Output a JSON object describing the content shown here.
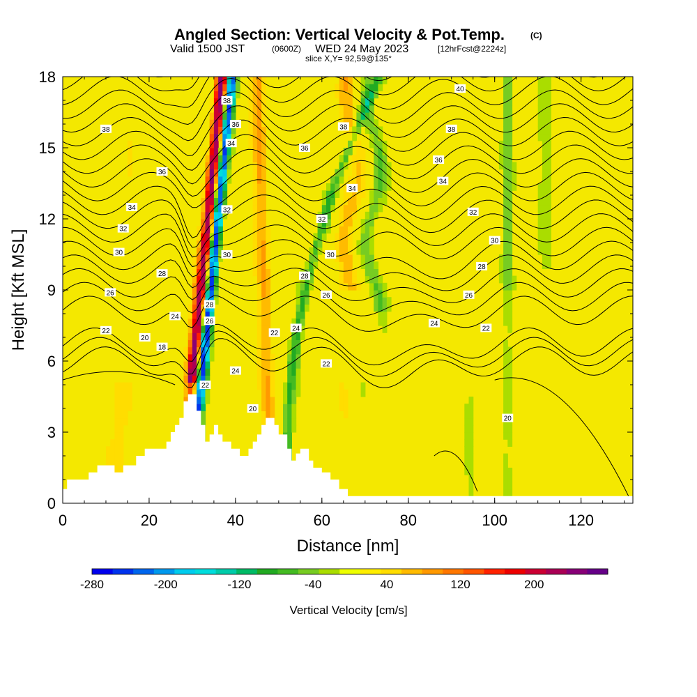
{
  "header": {
    "title_main": "Angled Section: Vertical Velocity & Pot.Temp.",
    "title_unit": "(C)",
    "line2_a": "Valid 1500 JST",
    "line2_b": "(0600Z)",
    "line2_c": "WED 24 May 2023",
    "line2_d": "[12hrFcst@2224z]",
    "line3": "slice X,Y= 92,59@135°"
  },
  "chart_data": {
    "type": "heatmap",
    "title": "Angled Section: Vertical Velocity & Pot.Temp. (C)",
    "xlabel": "Distance [nm]",
    "ylabel": "Height [Kft MSL]",
    "xlim": [
      0,
      132
    ],
    "ylim": [
      0,
      18
    ],
    "x_ticks": [
      "0",
      "20",
      "40",
      "60",
      "80",
      "100",
      "120"
    ],
    "x_tick_values": [
      0,
      20,
      40,
      60,
      80,
      100,
      120
    ],
    "y_ticks": [
      "0",
      "3",
      "6",
      "9",
      "12",
      "15",
      "18"
    ],
    "y_tick_values": [
      0,
      3,
      6,
      9,
      12,
      15,
      18
    ],
    "colorbar": {
      "label": "Vertical Velocity [cm/s]",
      "range": [
        -280,
        280
      ],
      "tick_labels": [
        "-280",
        "-200",
        "-120",
        "-40",
        "40",
        "120",
        "200"
      ],
      "tick_values": [
        -280,
        -200,
        -120,
        -40,
        40,
        120,
        200
      ],
      "colors": [
        "#0000ee",
        "#0033ee",
        "#0066ee",
        "#0099ee",
        "#00ccee",
        "#00dddd",
        "#00ccaa",
        "#00bb66",
        "#22aa22",
        "#44bb22",
        "#77cc22",
        "#aadd00",
        "#eeff00",
        "#ffee00",
        "#ffdd00",
        "#ffbb00",
        "#ff9900",
        "#ff7700",
        "#ff5500",
        "#ff2200",
        "#ee0000",
        "#cc0033",
        "#aa0055",
        "#880077",
        "#660088"
      ]
    },
    "terrain": [
      [
        0,
        0.6
      ],
      [
        1,
        0.6
      ],
      [
        1,
        1
      ],
      [
        6,
        1
      ],
      [
        6,
        1.3
      ],
      [
        8,
        1.3
      ],
      [
        8,
        1.6
      ],
      [
        12,
        1.6
      ],
      [
        12,
        1.3
      ],
      [
        14,
        1.3
      ],
      [
        14,
        1.6
      ],
      [
        17,
        1.6
      ],
      [
        17,
        2
      ],
      [
        19,
        2
      ],
      [
        19,
        2.3
      ],
      [
        24,
        2.3
      ],
      [
        24,
        2.6
      ],
      [
        25,
        2.6
      ],
      [
        25,
        3
      ],
      [
        26,
        3
      ],
      [
        26,
        3.3
      ],
      [
        27,
        3.3
      ],
      [
        27,
        3.6
      ],
      [
        28,
        3.6
      ],
      [
        28,
        4.3
      ],
      [
        29,
        4.3
      ],
      [
        29,
        4.6
      ],
      [
        31,
        4.6
      ],
      [
        31,
        3.9
      ],
      [
        32,
        3.9
      ],
      [
        32,
        3.3
      ],
      [
        33,
        3.3
      ],
      [
        33,
        2.6
      ],
      [
        34,
        2.6
      ],
      [
        34,
        2.9
      ],
      [
        35,
        2.9
      ],
      [
        35,
        3.3
      ],
      [
        36,
        3.3
      ],
      [
        36,
        2.9
      ],
      [
        37,
        2.9
      ],
      [
        37,
        2.6
      ],
      [
        39,
        2.6
      ],
      [
        39,
        2.3
      ],
      [
        41,
        2.3
      ],
      [
        41,
        2
      ],
      [
        43,
        2
      ],
      [
        43,
        2.3
      ],
      [
        44,
        2.3
      ],
      [
        44,
        2.6
      ],
      [
        45,
        2.6
      ],
      [
        45,
        2.9
      ],
      [
        46,
        2.9
      ],
      [
        46,
        3.3
      ],
      [
        47,
        3.3
      ],
      [
        47,
        3.6
      ],
      [
        49,
        3.6
      ],
      [
        49,
        3.3
      ],
      [
        50,
        3.3
      ],
      [
        50,
        2.9
      ],
      [
        52,
        2.9
      ],
      [
        52,
        2.3
      ],
      [
        53,
        2.3
      ],
      [
        53,
        1.8
      ],
      [
        54,
        1.8
      ],
      [
        54,
        2.1
      ],
      [
        55,
        2.1
      ],
      [
        55,
        2.3
      ],
      [
        57,
        2.3
      ],
      [
        57,
        1.8
      ],
      [
        58,
        1.8
      ],
      [
        58,
        1.5
      ],
      [
        60,
        1.5
      ],
      [
        60,
        1.3
      ],
      [
        62,
        1.3
      ],
      [
        62,
        1
      ],
      [
        64,
        1
      ],
      [
        64,
        0.6
      ],
      [
        66,
        0.6
      ],
      [
        66,
        0.3
      ],
      [
        132,
        0.3
      ]
    ],
    "theta_labels": [
      {
        "value": "38",
        "x": 38,
        "y": 17.0
      },
      {
        "value": "36",
        "x": 40,
        "y": 16.0
      },
      {
        "value": "34",
        "x": 39,
        "y": 15.2
      },
      {
        "value": "36",
        "x": 56,
        "y": 15.0
      },
      {
        "value": "32",
        "x": 38,
        "y": 12.4
      },
      {
        "value": "30",
        "x": 38,
        "y": 10.5
      },
      {
        "value": "28",
        "x": 56,
        "y": 9.6
      },
      {
        "value": "28",
        "x": 34,
        "y": 8.4
      },
      {
        "value": "26",
        "x": 34,
        "y": 7.7
      },
      {
        "value": "24",
        "x": 54,
        "y": 7.4
      },
      {
        "value": "22",
        "x": 49,
        "y": 7.2
      },
      {
        "value": "24",
        "x": 40,
        "y": 5.6
      },
      {
        "value": "22",
        "x": 33,
        "y": 5.0
      },
      {
        "value": "20",
        "x": 44,
        "y": 4.0
      },
      {
        "value": "22",
        "x": 61,
        "y": 5.9
      },
      {
        "value": "38",
        "x": 10,
        "y": 15.8
      },
      {
        "value": "36",
        "x": 23,
        "y": 14.0
      },
      {
        "value": "34",
        "x": 16,
        "y": 12.5
      },
      {
        "value": "32",
        "x": 14,
        "y": 11.6
      },
      {
        "value": "30",
        "x": 13,
        "y": 10.6
      },
      {
        "value": "28",
        "x": 23,
        "y": 9.7
      },
      {
        "value": "26",
        "x": 11,
        "y": 8.9
      },
      {
        "value": "24",
        "x": 26,
        "y": 7.9
      },
      {
        "value": "22",
        "x": 10,
        "y": 7.3
      },
      {
        "value": "20",
        "x": 19,
        "y": 7.0
      },
      {
        "value": "18",
        "x": 23,
        "y": 6.6
      },
      {
        "value": "38",
        "x": 65,
        "y": 15.9
      },
      {
        "value": "34",
        "x": 67,
        "y": 13.3
      },
      {
        "value": "32",
        "x": 60,
        "y": 12.0
      },
      {
        "value": "30",
        "x": 62,
        "y": 10.5
      },
      {
        "value": "26",
        "x": 61,
        "y": 8.8
      },
      {
        "value": "40",
        "x": 92,
        "y": 17.5
      },
      {
        "value": "38",
        "x": 90,
        "y": 15.8
      },
      {
        "value": "36",
        "x": 87,
        "y": 14.5
      },
      {
        "value": "34",
        "x": 88,
        "y": 13.6
      },
      {
        "value": "32",
        "x": 95,
        "y": 12.3
      },
      {
        "value": "30",
        "x": 100,
        "y": 11.1
      },
      {
        "value": "28",
        "x": 97,
        "y": 10.0
      },
      {
        "value": "26",
        "x": 94,
        "y": 8.8
      },
      {
        "value": "24",
        "x": 86,
        "y": 7.6
      },
      {
        "value": "22",
        "x": 98,
        "y": 7.4
      },
      {
        "value": "20",
        "x": 103,
        "y": 3.6
      }
    ]
  }
}
